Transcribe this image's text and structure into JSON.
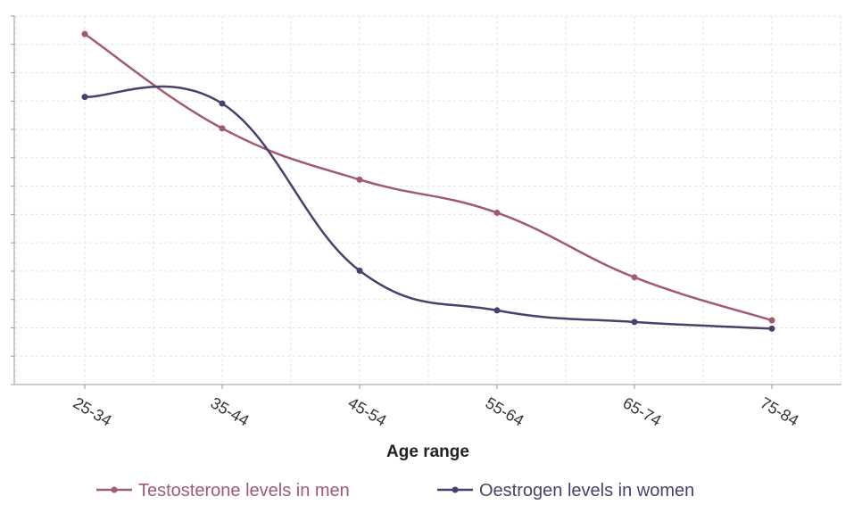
{
  "chart_data": {
    "type": "line",
    "title": "",
    "xlabel": "Age range",
    "ylabel": "",
    "categories": [
      "25-34",
      "35-44",
      "45-54",
      "55-64",
      "65-74",
      "75-84"
    ],
    "ylim": [
      0,
      100
    ],
    "grid": true,
    "legend_position": "bottom",
    "series": [
      {
        "name": "Testosterone levels in men",
        "color": "#a05a72",
        "values": [
          97,
          68.5,
          53,
          43,
          23.5,
          10.5
        ]
      },
      {
        "name": "Oestrogen levels in women",
        "color": "#4b3f6b",
        "values": [
          78,
          76,
          25.5,
          13.5,
          10,
          8
        ]
      }
    ]
  }
}
